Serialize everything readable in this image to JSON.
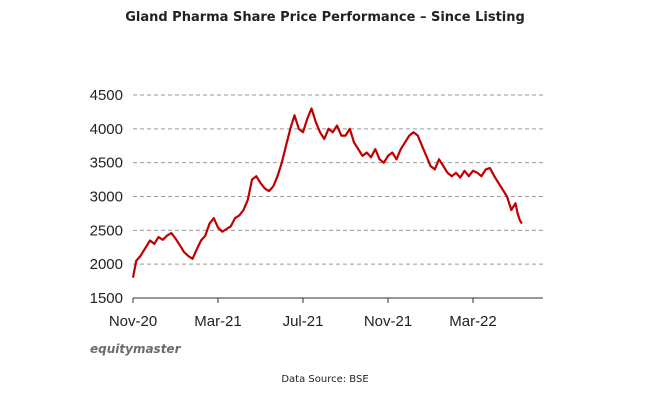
{
  "chart_data": {
    "type": "line",
    "title": "Gland Pharma Share Price Performance – Since Listing",
    "xlabel": "",
    "ylabel": "",
    "ylim": [
      1500,
      4500
    ],
    "yticks": [
      1500,
      2000,
      2500,
      3000,
      3500,
      4000,
      4500
    ],
    "xlim": [
      0,
      18.3
    ],
    "x_tick_labels": [
      {
        "label": "Nov-20",
        "month_index": 0
      },
      {
        "label": "Mar-21",
        "month_index": 4
      },
      {
        "label": "Jul-21",
        "month_index": 8
      },
      {
        "label": "Nov-21",
        "month_index": 12
      },
      {
        "label": "Mar-22",
        "month_index": 16
      }
    ],
    "grid": "horizontal dashed",
    "series": [
      {
        "name": "Gland Pharma share price",
        "color": "#c00000",
        "points": [
          [
            0.0,
            1800
          ],
          [
            0.15,
            2050
          ],
          [
            0.35,
            2120
          ],
          [
            0.6,
            2250
          ],
          [
            0.8,
            2350
          ],
          [
            1.0,
            2300
          ],
          [
            1.2,
            2400
          ],
          [
            1.4,
            2360
          ],
          [
            1.6,
            2420
          ],
          [
            1.8,
            2460
          ],
          [
            2.0,
            2380
          ],
          [
            2.2,
            2280
          ],
          [
            2.4,
            2180
          ],
          [
            2.6,
            2120
          ],
          [
            2.8,
            2080
          ],
          [
            3.0,
            2220
          ],
          [
            3.2,
            2350
          ],
          [
            3.4,
            2420
          ],
          [
            3.6,
            2600
          ],
          [
            3.8,
            2680
          ],
          [
            4.0,
            2540
          ],
          [
            4.2,
            2480
          ],
          [
            4.4,
            2520
          ],
          [
            4.6,
            2560
          ],
          [
            4.8,
            2680
          ],
          [
            5.0,
            2720
          ],
          [
            5.2,
            2800
          ],
          [
            5.4,
            2950
          ],
          [
            5.6,
            3250
          ],
          [
            5.8,
            3300
          ],
          [
            6.0,
            3200
          ],
          [
            6.2,
            3120
          ],
          [
            6.4,
            3080
          ],
          [
            6.6,
            3150
          ],
          [
            6.8,
            3300
          ],
          [
            7.0,
            3500
          ],
          [
            7.2,
            3750
          ],
          [
            7.4,
            4000
          ],
          [
            7.6,
            4200
          ],
          [
            7.8,
            4000
          ],
          [
            8.0,
            3950
          ],
          [
            8.2,
            4150
          ],
          [
            8.4,
            4300
          ],
          [
            8.6,
            4100
          ],
          [
            8.8,
            3950
          ],
          [
            9.0,
            3850
          ],
          [
            9.2,
            4000
          ],
          [
            9.4,
            3950
          ],
          [
            9.6,
            4050
          ],
          [
            9.8,
            3900
          ],
          [
            10.0,
            3900
          ],
          [
            10.2,
            4000
          ],
          [
            10.4,
            3800
          ],
          [
            10.6,
            3700
          ],
          [
            10.8,
            3600
          ],
          [
            11.0,
            3650
          ],
          [
            11.2,
            3580
          ],
          [
            11.4,
            3700
          ],
          [
            11.6,
            3550
          ],
          [
            11.8,
            3500
          ],
          [
            12.0,
            3600
          ],
          [
            12.2,
            3650
          ],
          [
            12.4,
            3550
          ],
          [
            12.6,
            3700
          ],
          [
            12.8,
            3800
          ],
          [
            13.0,
            3900
          ],
          [
            13.2,
            3950
          ],
          [
            13.4,
            3900
          ],
          [
            13.6,
            3750
          ],
          [
            13.8,
            3600
          ],
          [
            14.0,
            3450
          ],
          [
            14.2,
            3400
          ],
          [
            14.4,
            3550
          ],
          [
            14.6,
            3450
          ],
          [
            14.8,
            3350
          ],
          [
            15.0,
            3300
          ],
          [
            15.2,
            3350
          ],
          [
            15.4,
            3280
          ],
          [
            15.6,
            3380
          ],
          [
            15.8,
            3300
          ],
          [
            16.0,
            3380
          ],
          [
            16.2,
            3350
          ],
          [
            16.4,
            3300
          ],
          [
            16.6,
            3400
          ],
          [
            16.8,
            3420
          ],
          [
            17.0,
            3300
          ],
          [
            17.2,
            3200
          ],
          [
            17.4,
            3100
          ],
          [
            17.6,
            3000
          ],
          [
            17.8,
            2800
          ],
          [
            18.0,
            2900
          ],
          [
            18.1,
            2750
          ],
          [
            18.2,
            2650
          ],
          [
            18.3,
            2600
          ]
        ]
      }
    ]
  },
  "brand": "equitymaster",
  "source": "Data Source: BSE"
}
